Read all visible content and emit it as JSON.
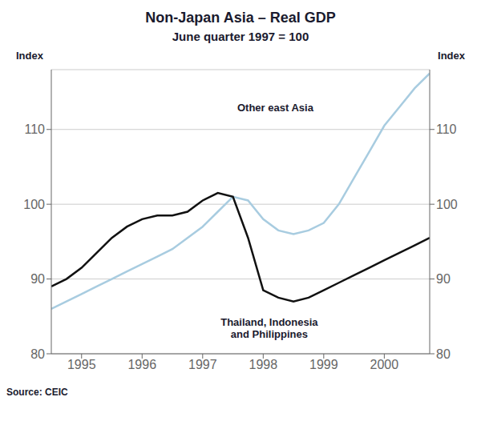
{
  "chart_data": {
    "type": "line",
    "title": "Non-Japan Asia – Real GDP",
    "subtitle": "June quarter 1997 = 100",
    "y_label": "Index",
    "y2_label": "Index",
    "source": "Source: CEIC",
    "grid": true,
    "xlim": [
      1994.5,
      2000.75
    ],
    "xticks": [
      1995,
      1996,
      1997,
      1998,
      1999,
      2000
    ],
    "ylim": [
      80,
      118
    ],
    "yticks": [
      80,
      90,
      100,
      110
    ],
    "y2lim": [
      80,
      118
    ],
    "y2ticks": [
      80,
      90,
      100,
      110
    ],
    "x": [
      1994.5,
      1994.75,
      1995.0,
      1995.25,
      1995.5,
      1995.75,
      1996.0,
      1996.25,
      1996.5,
      1996.75,
      1997.0,
      1997.25,
      1997.5,
      1997.75,
      1998.0,
      1998.25,
      1998.5,
      1998.75,
      1999.0,
      1999.25,
      1999.5,
      1999.75,
      2000.0,
      2000.25,
      2000.5,
      2000.75
    ],
    "series": [
      {
        "color": "#a8cce0",
        "values": [
          86.0,
          87.0,
          88.0,
          89.0,
          90.0,
          91.0,
          92.0,
          93.0,
          94.0,
          95.5,
          97.0,
          99.0,
          101.0,
          100.5,
          98.0,
          96.5,
          96.0,
          96.5,
          97.5,
          100.0,
          103.5,
          107.0,
          110.5,
          113.0,
          115.5,
          117.5
        ]
      },
      {
        "color": "#111111",
        "values": [
          89.0,
          90.0,
          91.5,
          93.5,
          95.5,
          97.0,
          98.0,
          98.5,
          98.5,
          99.0,
          100.5,
          101.5,
          101.0,
          95.5,
          88.5,
          87.5,
          87.0,
          87.5,
          88.5,
          89.5,
          90.5,
          91.5,
          92.5,
          93.5,
          94.5,
          95.5
        ]
      }
    ],
    "annotations": [
      {
        "text": "Other east Asia",
        "x": 1998.2,
        "y": 113.0
      },
      {
        "text": "Thailand, Indonesia\nand Philippines",
        "x": 1998.1,
        "y": 83.5
      }
    ]
  }
}
